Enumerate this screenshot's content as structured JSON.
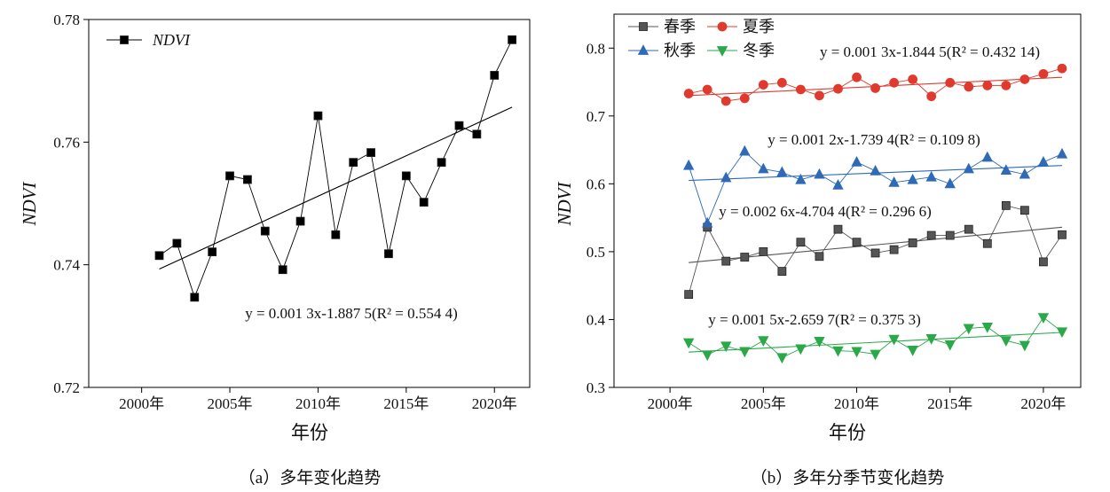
{
  "chart_data": [
    {
      "type": "line",
      "caption": "（a）多年变化趋势",
      "xlabel": "年份",
      "ylabel": "NDVI",
      "xticks": [
        "2000年",
        "2005年",
        "2010年",
        "2015年",
        "2020年"
      ],
      "xlim": [
        1997,
        2022
      ],
      "ylim": [
        0.72,
        0.78
      ],
      "yticks": [
        "0.72",
        "0.74",
        "0.76",
        "0.78"
      ],
      "legend_position": "top-left",
      "series": [
        {
          "name": "NDVI",
          "marker": "square",
          "color": "#000000",
          "x": [
            2001,
            2002,
            2003,
            2004,
            2005,
            2006,
            2007,
            2008,
            2009,
            2010,
            2011,
            2012,
            2013,
            2014,
            2015,
            2016,
            2017,
            2018,
            2019,
            2020,
            2021
          ],
          "values": [
            0.7415,
            0.7435,
            0.7347,
            0.7421,
            0.7545,
            0.7539,
            0.7455,
            0.7392,
            0.7471,
            0.7643,
            0.7449,
            0.7567,
            0.7583,
            0.7418,
            0.7545,
            0.7502,
            0.7567,
            0.7627,
            0.7613,
            0.7709,
            0.7767
          ],
          "fit": {
            "equation": "y = 0.001 3x-1.887 5(R² = 0.554 4)",
            "y_start": 0.7393,
            "y_end": 0.7657
          }
        }
      ]
    },
    {
      "type": "line",
      "caption": "（b）多年分季节变化趋势",
      "xlabel": "年份",
      "ylabel": "NDVI",
      "xticks": [
        "2000年",
        "2005年",
        "2010年",
        "2015年",
        "2020年"
      ],
      "xlim": [
        1997,
        2022
      ],
      "ylim": [
        0.3,
        0.85
      ],
      "yticks": [
        "0.3",
        "0.4",
        "0.5",
        "0.6",
        "0.7",
        "0.8"
      ],
      "legend_position": "top-left",
      "series": [
        {
          "name": "春季",
          "marker": "square",
          "color": "#555555",
          "x": [
            2001,
            2002,
            2003,
            2004,
            2005,
            2006,
            2007,
            2008,
            2009,
            2010,
            2011,
            2012,
            2013,
            2014,
            2015,
            2016,
            2017,
            2018,
            2019,
            2020,
            2021
          ],
          "values": [
            0.437,
            0.536,
            0.486,
            0.492,
            0.5,
            0.471,
            0.514,
            0.493,
            0.533,
            0.514,
            0.498,
            0.503,
            0.513,
            0.524,
            0.524,
            0.533,
            0.512,
            0.568,
            0.561,
            0.485,
            0.525
          ],
          "fit": {
            "equation": "y = 0.002 6x-4.704 4(R² = 0.296 6)",
            "y_start": 0.484,
            "y_end": 0.536
          }
        },
        {
          "name": "夏季",
          "marker": "circle",
          "color": "#e03a2f",
          "x": [
            2001,
            2002,
            2003,
            2004,
            2005,
            2006,
            2007,
            2008,
            2009,
            2010,
            2011,
            2012,
            2013,
            2014,
            2015,
            2016,
            2017,
            2018,
            2019,
            2020,
            2021
          ],
          "values": [
            0.733,
            0.739,
            0.722,
            0.726,
            0.746,
            0.749,
            0.739,
            0.73,
            0.74,
            0.757,
            0.741,
            0.749,
            0.754,
            0.729,
            0.749,
            0.743,
            0.745,
            0.745,
            0.754,
            0.762,
            0.77
          ],
          "fit": {
            "equation": "y = 0.001 3x-1.844 5(R² = 0.432 14)",
            "y_start": 0.73,
            "y_end": 0.757
          }
        },
        {
          "name": "秋季",
          "marker": "triangle-up",
          "color": "#2e6ab5",
          "x": [
            2001,
            2002,
            2003,
            2004,
            2005,
            2006,
            2007,
            2008,
            2009,
            2010,
            2011,
            2012,
            2013,
            2014,
            2015,
            2016,
            2017,
            2018,
            2019,
            2020,
            2021
          ],
          "values": [
            0.627,
            0.542,
            0.609,
            0.648,
            0.622,
            0.617,
            0.606,
            0.614,
            0.598,
            0.632,
            0.619,
            0.602,
            0.606,
            0.61,
            0.6,
            0.622,
            0.639,
            0.62,
            0.614,
            0.632,
            0.644
          ],
          "fit": {
            "equation": "y = 0.001 2x-1.739 4(R² = 0.109 8)",
            "y_start": 0.605,
            "y_end": 0.627
          }
        },
        {
          "name": "冬季",
          "marker": "triangle-down",
          "color": "#2aa84a",
          "x": [
            2001,
            2002,
            2003,
            2004,
            2005,
            2006,
            2007,
            2008,
            2009,
            2010,
            2011,
            2012,
            2013,
            2014,
            2015,
            2016,
            2017,
            2018,
            2019,
            2020,
            2021
          ],
          "values": [
            0.366,
            0.348,
            0.361,
            0.353,
            0.369,
            0.344,
            0.357,
            0.368,
            0.354,
            0.353,
            0.349,
            0.371,
            0.355,
            0.372,
            0.363,
            0.387,
            0.389,
            0.369,
            0.362,
            0.403,
            0.382
          ],
          "fit": {
            "equation": "y = 0.001 5x-2.659 7(R² = 0.375 3)",
            "y_start": 0.352,
            "y_end": 0.381
          }
        }
      ]
    }
  ]
}
